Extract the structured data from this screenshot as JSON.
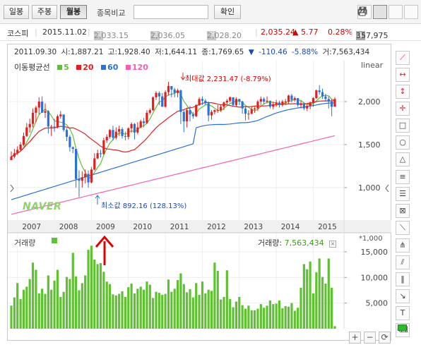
{
  "toolbar": {
    "periods": [
      "일봉",
      "주봉",
      "월봉"
    ],
    "active_period": "월봉",
    "search_label": "종목비교",
    "search_value": "",
    "confirm_label": "확인",
    "tool_icons": [
      "pin-icon",
      "edit-icon",
      "copy-icon",
      "print-icon"
    ]
  },
  "quote": {
    "name": "코스피",
    "date": "2015.11.02",
    "open_tag": "시",
    "open": "2,033.15",
    "high_tag": "고",
    "high": "2,036.05",
    "low_tag": "저",
    "low": "2,028.20",
    "close": "2,035.24",
    "change": "▲ 5.77",
    "change_pct": "0.28%",
    "volume": "357,975"
  },
  "info": {
    "date": "2011.09.30",
    "open": "시:1,887.21",
    "high": "고:1,928.40",
    "low": "저:1,644.11",
    "close": "종:1,769.65",
    "arrow": "▼",
    "change": "-110.46",
    "change_pct": "-5.88%",
    "volume": "거:7,563,434"
  },
  "legend": {
    "title": "이동평균선",
    "items": [
      {
        "label": "5",
        "color": "#5fc132"
      },
      {
        "label": "20",
        "color": "#e02020"
      },
      {
        "label": "60",
        "color": "#2a72d5"
      },
      {
        "label": "120",
        "color": "#f25fb4"
      }
    ]
  },
  "scale_label": "linear",
  "watermark": "NAVER",
  "annotations": {
    "max_label": "최대값",
    "max_value": "2,231.47 (-8.79%)",
    "min_label": "최소값",
    "min_value": "892.16 (128.13%)"
  },
  "volume_panel": {
    "title": "거래량",
    "readout_label": "거래량:",
    "readout_value": "7,563,434",
    "unit": "*1,000"
  },
  "colors": {
    "up": "#e02020",
    "down": "#2a72d5",
    "volume": "#5fc132",
    "arrow": "#e00000"
  },
  "chart_data": [
    {
      "type": "candlestick",
      "title": "코스피 월봉",
      "x_labels": [
        "2007",
        "2008",
        "2009",
        "2010",
        "2011",
        "2012",
        "2013",
        "2014",
        "2015"
      ],
      "ylim": [
        800,
        2300
      ],
      "y_ticks": [
        "1,000",
        "1,500",
        "2,000"
      ],
      "scale": "linear",
      "closes": [
        1360,
        1400,
        1440,
        1500,
        1600,
        1700,
        1740,
        1870,
        1930,
        2000,
        1870,
        1890,
        1710,
        1710,
        1700,
        1830,
        1850,
        1670,
        1590,
        1470,
        1450,
        1100,
        1080,
        1120,
        1160,
        1060,
        1210,
        1340,
        1400,
        1390,
        1550,
        1590,
        1670,
        1580,
        1650,
        1680,
        1600,
        1590,
        1690,
        1740,
        1640,
        1700,
        1770,
        1750,
        1870,
        1900,
        2050,
        2100,
        2060,
        1940,
        2110,
        2180,
        2140,
        2100,
        2130,
        1880,
        1770,
        1900,
        1850,
        1830,
        1960,
        2030,
        2010,
        1980,
        1840,
        1880,
        1900,
        1900,
        1940,
        1990,
        2010,
        2050,
        1960,
        2030,
        2000,
        1920,
        1860,
        1860,
        1910,
        1920,
        2000,
        2030,
        2000,
        2010,
        1940,
        1970,
        1990,
        1960,
        2000,
        2000,
        2070,
        2020,
        2040,
        1960,
        1980,
        1920,
        1950,
        1990,
        2040,
        2130,
        2110,
        2060,
        2030,
        2000,
        1940,
        2030
      ],
      "highs": [
        1420,
        1450,
        1480,
        1530,
        1640,
        1750,
        1800,
        1920,
        1950,
        2050,
        2060,
        1980,
        1900,
        1730,
        1800,
        1850,
        1890,
        1850,
        1690,
        1610,
        1480,
        1440,
        1200,
        1190,
        1210,
        1200,
        1240,
        1400,
        1440,
        1440,
        1580,
        1620,
        1680,
        1720,
        1700,
        1720,
        1700,
        1650,
        1700,
        1760,
        1750,
        1760,
        1790,
        1810,
        1900,
        1920,
        2060,
        2120,
        2120,
        2100,
        2130,
        2231,
        2180,
        2160,
        2150,
        2140,
        1900,
        1930,
        1950,
        1880,
        1970,
        2050,
        2060,
        2030,
        2000,
        1900,
        1910,
        1960,
        1960,
        2000,
        2030,
        2060,
        2050,
        2050,
        2020,
        2010,
        1940,
        1900,
        1940,
        1940,
        2020,
        2060,
        2050,
        2060,
        2000,
        2000,
        2020,
        2010,
        2020,
        2030,
        2080,
        2090,
        2060,
        2040,
        2010,
        1990,
        1980,
        2000,
        2050,
        2140,
        2190,
        2150,
        2090,
        2060,
        2030,
        2050
      ],
      "lows": [
        1350,
        1340,
        1380,
        1430,
        1480,
        1590,
        1640,
        1700,
        1760,
        1850,
        1880,
        1810,
        1630,
        1600,
        1650,
        1690,
        1800,
        1650,
        1540,
        1420,
        1400,
        1000,
        892,
        1000,
        1050,
        1000,
        1050,
        1200,
        1330,
        1350,
        1380,
        1520,
        1570,
        1550,
        1560,
        1600,
        1570,
        1550,
        1560,
        1640,
        1560,
        1620,
        1690,
        1700,
        1740,
        1850,
        1890,
        2020,
        1960,
        1940,
        1930,
        2070,
        2050,
        2050,
        2050,
        1740,
        1644,
        1700,
        1770,
        1800,
        1820,
        1950,
        1960,
        1960,
        1770,
        1790,
        1850,
        1870,
        1880,
        1900,
        1960,
        1990,
        1940,
        1940,
        1960,
        1860,
        1780,
        1790,
        1850,
        1870,
        1890,
        1960,
        1970,
        1980,
        1920,
        1910,
        1940,
        1930,
        1940,
        1960,
        1970,
        1990,
        2000,
        1940,
        1920,
        1900,
        1890,
        1910,
        1940,
        2030,
        2080,
        2030,
        2000,
        1920,
        1830,
        1950
      ],
      "volume_yticks": [
        "5,000",
        "10,000",
        "15,000"
      ],
      "volume_ylim": [
        0,
        17000
      ],
      "volumes": [
        4500,
        6100,
        8900,
        5800,
        7600,
        8200,
        9700,
        12900,
        11500,
        6900,
        7800,
        6800,
        10400,
        7600,
        9400,
        11500,
        6200,
        7200,
        10100,
        9700,
        14800,
        10200,
        7500,
        8900,
        10400,
        15400,
        16200,
        13500,
        12600,
        12800,
        11100,
        9200,
        8700,
        6700,
        6500,
        6800,
        7300,
        6200,
        8100,
        8800,
        6900,
        7800,
        8200,
        7600,
        9200,
        8600,
        6000,
        7200,
        7000,
        6600,
        6800,
        9600,
        7200,
        7800,
        9500,
        10800,
        8700,
        7100,
        7700,
        6100,
        8900,
        6600,
        9200,
        6900,
        7600,
        7400,
        12900,
        11300,
        5700,
        6200,
        11400,
        5800,
        4200,
        5300,
        6200,
        4600,
        3900,
        4500,
        3600,
        3600,
        3900,
        4800,
        4100,
        4500,
        5500,
        4800,
        4900,
        5500,
        4000,
        4400,
        4300,
        5000,
        3500,
        4100,
        8000,
        12600,
        11600,
        13100,
        6900,
        11000,
        13700,
        10100,
        8800,
        13700,
        8000,
        500
      ]
    }
  ]
}
